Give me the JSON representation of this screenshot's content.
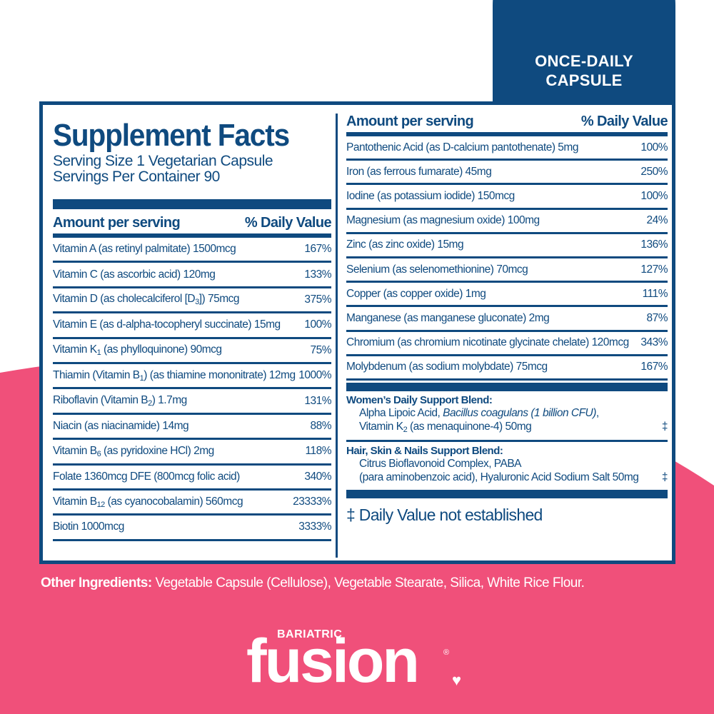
{
  "colors": {
    "navy": "#0f4a7f",
    "pink": "#f0507a"
  },
  "badge": {
    "line1": "ONCE-DAILY",
    "line2": "CAPSULE"
  },
  "title": "Supplement Facts",
  "serving_size": "Serving Size 1 Vegetarian Capsule",
  "servings_per_container": "Servings Per Container 90",
  "header": {
    "amount": "Amount per serving",
    "dv": "% Daily Value"
  },
  "left_rows": [
    {
      "a": "Vitamin A (as retinyl palmitate) 1500mcg",
      "s": "",
      "b": "",
      "dv": "167%"
    },
    {
      "a": "Vitamin C (as ascorbic acid) 120mg",
      "s": "",
      "b": "",
      "dv": "133%"
    },
    {
      "a": "Vitamin D (as cholecalciferol [D",
      "s": "3",
      "b": "]) 75mcg",
      "dv": "375%"
    },
    {
      "a": "Vitamin E (as d-alpha-tocopheryl succinate) 15mg",
      "s": "",
      "b": "",
      "dv": "100%"
    },
    {
      "a": "Vitamin K",
      "s": "1",
      "b": " (as phylloquinone) 90mcg",
      "dv": "75%"
    },
    {
      "a": "Thiamin (Vitamin B",
      "s": "1",
      "b": ") (as thiamine mononitrate) 12mg",
      "dv": "1000%"
    },
    {
      "a": "Riboflavin (Vitamin B",
      "s": "2",
      "b": ") 1.7mg",
      "dv": "131%"
    },
    {
      "a": "Niacin (as niacinamide) 14mg",
      "s": "",
      "b": "",
      "dv": "88%"
    },
    {
      "a": "Vitamin B",
      "s": "6",
      "b": " (as pyridoxine HCl) 2mg",
      "dv": "118%"
    },
    {
      "a": "Folate 1360mcg DFE (800mcg folic acid)",
      "s": "",
      "b": "",
      "dv": "340%"
    },
    {
      "a": "Vitamin B",
      "s": "12",
      "b": " (as cyanocobalamin) 560mcg",
      "dv": "23333%"
    },
    {
      "a": "Biotin 1000mcg",
      "s": "",
      "b": "",
      "dv": "3333%"
    }
  ],
  "right_rows": [
    {
      "a": "Pantothenic Acid (as D-calcium pantothenate) 5mg",
      "dv": "100%"
    },
    {
      "a": "Iron (as ferrous fumarate) 45mg",
      "dv": "250%"
    },
    {
      "a": "Iodine (as potassium iodide) 150mcg",
      "dv": "100%"
    },
    {
      "a": "Magnesium (as magnesium oxide) 100mg",
      "dv": "24%"
    },
    {
      "a": "Zinc (as zinc oxide) 15mg",
      "dv": "136%"
    },
    {
      "a": "Selenium (as selenomethionine) 70mcg",
      "dv": "127%"
    },
    {
      "a": "Copper (as copper oxide) 1mg",
      "dv": "111%"
    },
    {
      "a": "Manganese (as manganese gluconate) 2mg",
      "dv": "87%"
    },
    {
      "a": "Chromium (as chromium nicotinate glycinate chelate) 120mcg",
      "dv": "343%"
    },
    {
      "a": "Molybdenum (as sodium molybdate) 75mcg",
      "dv": "167%"
    }
  ],
  "blends": [
    {
      "title": "Women’s Daily Support Blend:",
      "line1a": "Alpha Lipoic Acid, ",
      "line1i": "Bacillus coagulans (1 billion CFU)",
      "line1b": ",",
      "line2a": "Vitamin K",
      "line2s": "2",
      "line2b": " (as menaquinone-4) 50mg",
      "dv": "‡"
    },
    {
      "title": "Hair, Skin & Nails Support Blend:",
      "line1a": "Citrus Bioflavonoid Complex, PABA",
      "line1i": "",
      "line1b": "",
      "line2a": "(para aminobenzoic acid), Hyaluronic Acid Sodium Salt 50mg",
      "line2s": "",
      "line2b": "",
      "dv": "‡"
    }
  ],
  "footnote": "‡ Daily Value not established",
  "other": {
    "label": "Other Ingredients:",
    "text": " Vegetable Capsule (Cellulose), Vegetable Stearate, Silica, White Rice Flour."
  },
  "logo": {
    "small": "BARIATRIC",
    "big": "fusion",
    "reg": "®",
    "heart": "♥"
  }
}
